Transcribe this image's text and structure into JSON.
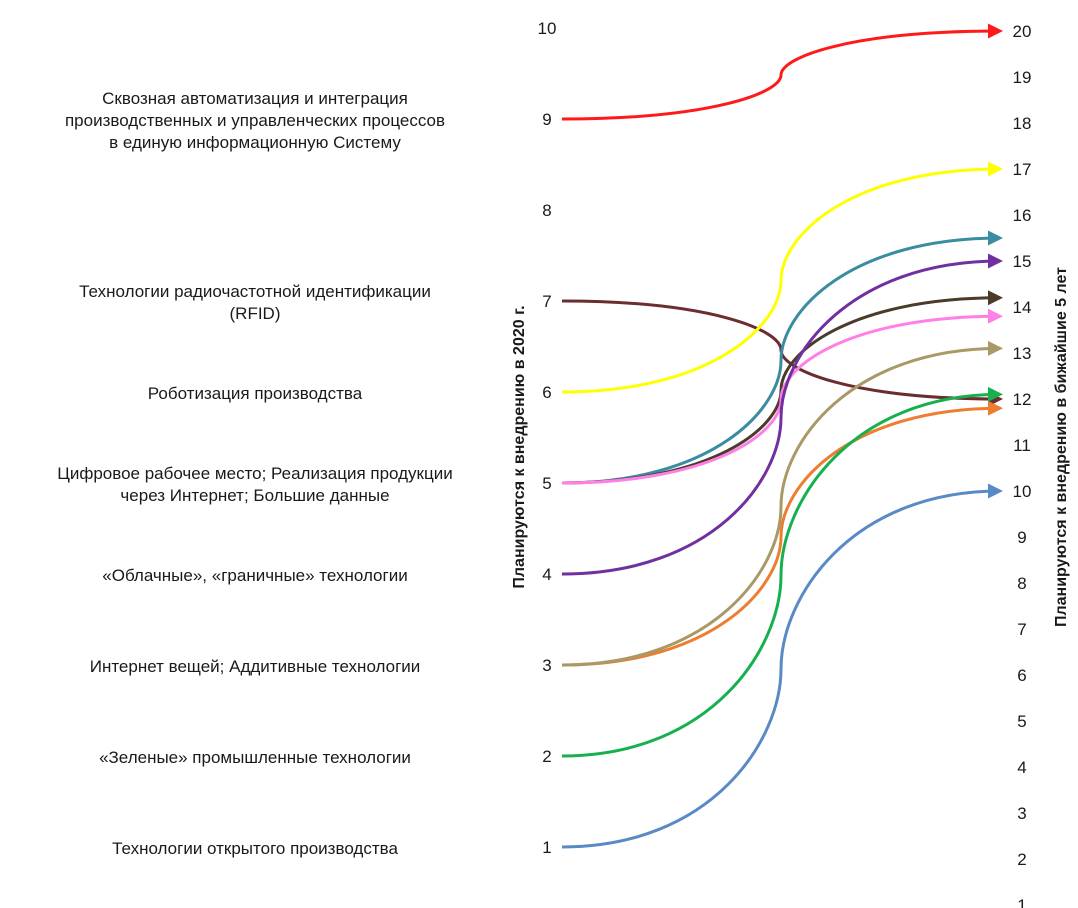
{
  "chart_data": {
    "type": "line",
    "left_axis": {
      "label": "Планируются к внедрению в 2020 г.",
      "ticks": [
        1,
        2,
        3,
        4,
        5,
        6,
        7,
        8,
        9,
        10
      ],
      "range": [
        1,
        10
      ]
    },
    "right_axis": {
      "label": "Планируются к внедрению в бижайшие 5 лет",
      "ticks": [
        1,
        2,
        3,
        4,
        5,
        6,
        7,
        8,
        9,
        10,
        11,
        12,
        13,
        14,
        15,
        16,
        17,
        18,
        19,
        20
      ],
      "range": [
        1,
        20
      ]
    },
    "category_labels": [
      {
        "text": "Сквозная автоматизация и интеграция\nпроизводственных и управленческих процессов\nв единую информационную Систему",
        "level": 9
      },
      {
        "text": "Технологии радиочастотной идентификации\n(RFID)",
        "level": 7
      },
      {
        "text": "Роботизация производства",
        "level": 6
      },
      {
        "text": "Цифровое рабочее место;  Реализация продукции\nчерез Интернет;  Большие данные",
        "level": 5
      },
      {
        "text": "«Облачные», «граничные» технологии",
        "level": 4
      },
      {
        "text": "Интернет вещей; Аддитивные технологии",
        "level": 3
      },
      {
        "text": "«Зеленые» промышленные технологии",
        "level": 2
      },
      {
        "text": "Технологии открытого производства",
        "level": 1
      }
    ],
    "series": [
      {
        "from": 9,
        "to": 20,
        "color": "#ff1a1a"
      },
      {
        "from": 7,
        "to": 12,
        "color": "#6b2d2d"
      },
      {
        "from": 6,
        "to": 17,
        "color": "#ffff00"
      },
      {
        "from": 5,
        "to": 15.5,
        "color": "#3a8ca0"
      },
      {
        "from": 5,
        "to": 14.2,
        "color": "#4a3b2b"
      },
      {
        "from": 5,
        "to": 13.8,
        "color": "#ff7fe6"
      },
      {
        "from": 4,
        "to": 15,
        "color": "#7030a0"
      },
      {
        "from": 3,
        "to": 11.8,
        "color": "#ed7d31"
      },
      {
        "from": 3,
        "to": 13.1,
        "color": "#a89966"
      },
      {
        "from": 2,
        "to": 12.1,
        "color": "#17b04f"
      },
      {
        "from": 1,
        "to": 10,
        "color": "#5a8ac6"
      }
    ]
  }
}
